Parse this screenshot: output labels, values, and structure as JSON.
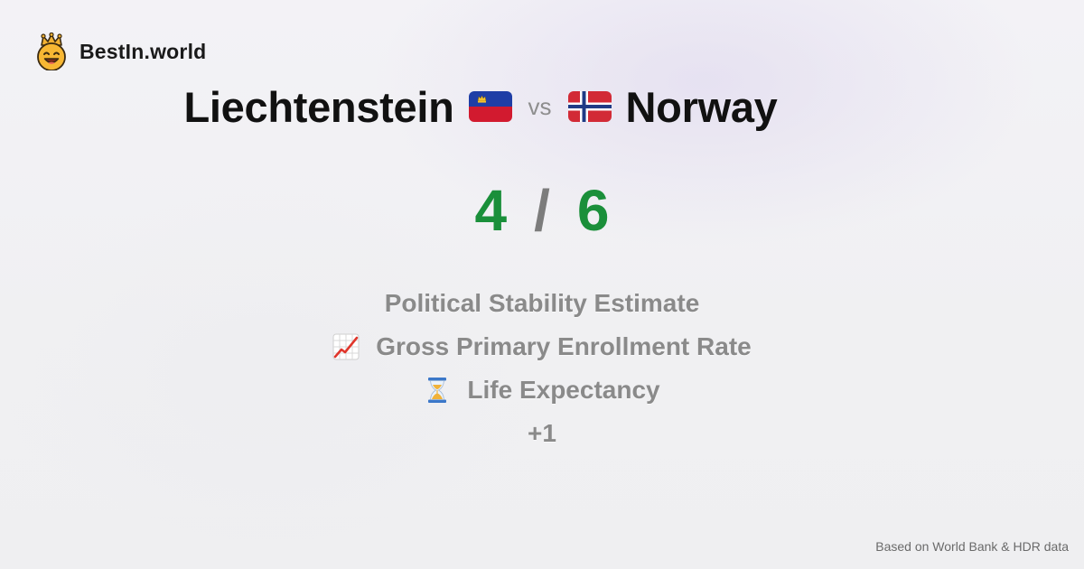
{
  "brand": {
    "name": "BestIn.world",
    "logo_icon": "crown-smiley-icon"
  },
  "comparison": {
    "country_a": "Liechtenstein",
    "flag_a": "liechtenstein-flag-icon",
    "vs_label": "vs",
    "country_b": "Norway",
    "flag_b": "norway-flag-icon"
  },
  "score": {
    "a": "4",
    "separator": "/",
    "b": "6",
    "color": "#1a8f3a"
  },
  "metrics": [
    {
      "label": "Political Stability Estimate",
      "icon": ""
    },
    {
      "label": "Gross Primary Enrollment Rate",
      "icon": "chart-increasing-icon"
    },
    {
      "label": "Life Expectancy",
      "icon": "hourglass-icon"
    },
    {
      "label": "+1",
      "icon": ""
    }
  ],
  "footer": {
    "source": "Based on World Bank & HDR data"
  }
}
